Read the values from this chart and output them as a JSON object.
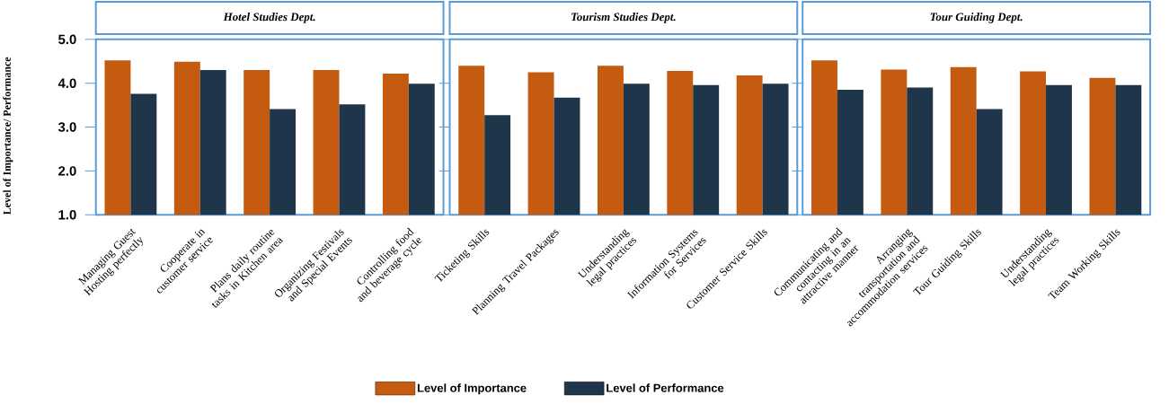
{
  "chart_data": [
    {
      "type": "bar",
      "title": "Hotel Studies Dept.",
      "ylabel": "Level of Importance/ Performance",
      "categories": [
        "Managing Guest Hosting perfectly",
        "Cooperate in customer service",
        "Plans daily routine tasks in Kitchen area",
        "Organizing Festivals and Special Events",
        "Controlling food and beverage cycle"
      ],
      "series": [
        {
          "color": "#c55a11",
          "values": [
            4.52,
            4.49,
            4.3,
            4.3,
            4.22
          ]
        },
        {
          "color": "#1f3549",
          "values": [
            3.76,
            4.3,
            3.41,
            3.52,
            3.99
          ]
        }
      ],
      "ylim": [
        1,
        5
      ],
      "yticks": [
        {
          "value": 1,
          "label": "1.0"
        },
        {
          "value": 2,
          "label": "2.0"
        },
        {
          "value": 3,
          "label": "3.0"
        },
        {
          "value": 4,
          "label": "4.0"
        },
        {
          "value": 5,
          "label": "5.0"
        }
      ]
    },
    {
      "type": "bar",
      "title": "Tourism Studies Dept.",
      "categories": [
        "Ticketing Skills",
        "Planning Travel Packages",
        "Understanding legal practices",
        "Information Systems for Services",
        "Customer Service Skills"
      ],
      "series": [
        {
          "name": "Level of Importance",
          "color": "#c55a11",
          "values": [
            4.4,
            4.25,
            4.4,
            4.28,
            4.18
          ]
        },
        {
          "name": "Level of Performance",
          "color": "#1f3549",
          "values": [
            3.27,
            3.67,
            3.99,
            3.96,
            3.99
          ]
        }
      ],
      "ylim": [
        1,
        5
      ],
      "yticks": [
        1,
        2,
        3,
        4,
        5
      ],
      "tick_labels": "x",
      "legend": "bottom"
    },
    {
      "type": "bar",
      "title": "Tour Guiding Dept.",
      "categories": [
        "Communicating and contacting in an attractive manner",
        "Arranging transportation and accommodation services",
        "Tour Guiding Skills",
        "Understanding legal practices",
        "Team Working Skills"
      ],
      "series": [
        {
          "color": "#c55a11",
          "values": [
            4.52,
            4.31,
            4.37,
            4.27,
            4.12
          ]
        },
        {
          "color": "#1f3549",
          "values": [
            3.85,
            3.9,
            3.41,
            3.96,
            3.96
          ]
        }
      ],
      "ylim": [
        1,
        5
      ],
      "yticks": [
        1,
        2,
        3,
        4,
        5
      ],
      "tick_labels": "x"
    }
  ]
}
